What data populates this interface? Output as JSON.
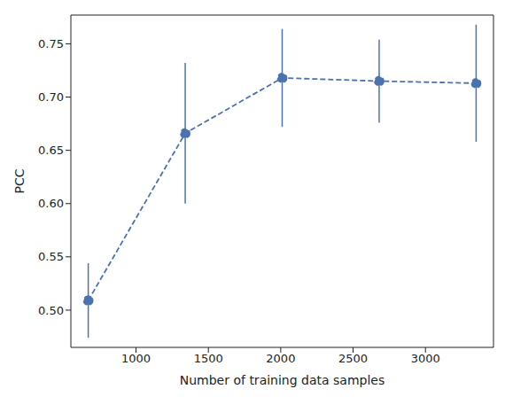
{
  "chart_data": {
    "type": "line",
    "x_label": "Number of training data samples",
    "y_label": "PCC",
    "x": [
      670,
      1340,
      2010,
      2680,
      3350
    ],
    "values": [
      0.509,
      0.666,
      0.718,
      0.715,
      0.713
    ],
    "errors": [
      0.035,
      0.066,
      0.046,
      0.039,
      0.055
    ],
    "color": "#4c72b0",
    "marker": "circle",
    "line_style": "dashed",
    "xlim": [
      550,
      3470
    ],
    "xticks": [
      1000,
      1500,
      2000,
      2500,
      3000
    ],
    "ylim": [
      0.465,
      0.777
    ],
    "yticks": [
      {
        "value": 0.5,
        "label": "0.50"
      },
      0.55,
      {
        "value": 0.6,
        "label": "0.60"
      },
      0.65,
      {
        "value": 0.7,
        "label": "0.70"
      },
      0.75
    ],
    "grid": false
  }
}
